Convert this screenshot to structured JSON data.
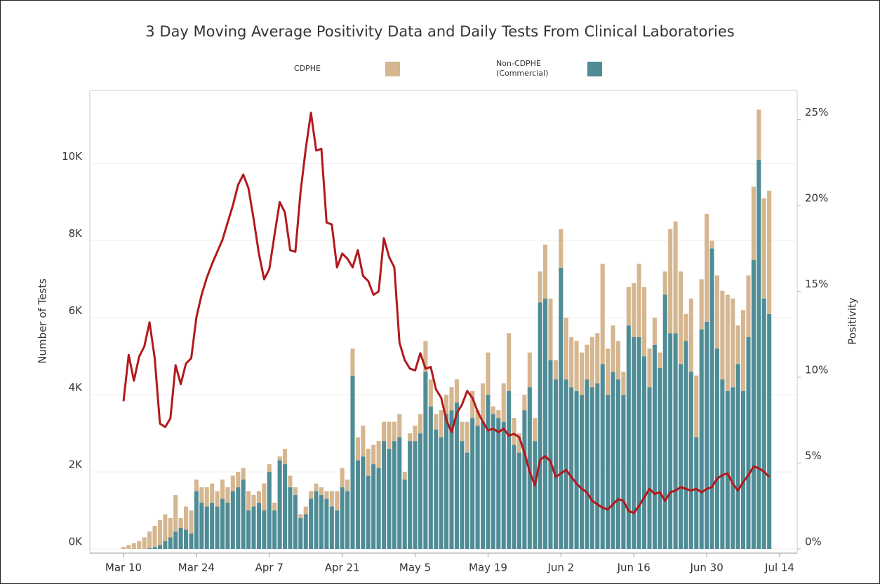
{
  "chart_data": {
    "type": "bar",
    "stacked": true,
    "title": "3 Day Moving Average Positivity Data and Daily Tests From Clinical Laboratories",
    "y_label": "Number of Tests",
    "y2_label": "Positivity",
    "categories": [
      "Mar 10",
      null,
      null,
      null,
      null,
      null,
      null,
      null,
      null,
      null,
      null,
      null,
      null,
      null,
      "Mar 24",
      null,
      null,
      null,
      null,
      null,
      null,
      null,
      null,
      null,
      null,
      null,
      null,
      null,
      "Apr 7",
      null,
      null,
      null,
      null,
      null,
      null,
      null,
      null,
      null,
      null,
      null,
      null,
      null,
      "Apr 21",
      null,
      null,
      null,
      null,
      null,
      null,
      null,
      null,
      null,
      null,
      null,
      null,
      null,
      "May 5",
      null,
      null,
      null,
      null,
      null,
      null,
      null,
      null,
      null,
      null,
      null,
      null,
      null,
      "May 19",
      null,
      null,
      null,
      null,
      null,
      null,
      null,
      null,
      null,
      null,
      null,
      null,
      null,
      "Jun 2",
      null,
      null,
      null,
      null,
      null,
      null,
      null,
      null,
      null,
      null,
      null,
      null,
      null,
      "Jun 16",
      null,
      null,
      null,
      null,
      null,
      null,
      null,
      null,
      null,
      null,
      null,
      null,
      null,
      "Jun 30",
      null,
      null,
      null,
      null,
      null,
      null,
      null,
      null,
      null,
      null,
      null,
      null,
      null,
      "Jul 14"
    ],
    "series": [
      {
        "name": "CDPHE",
        "color": "#d5b68f",
        "values": [
          50,
          100,
          150,
          200,
          300,
          430,
          550,
          650,
          700,
          500,
          950,
          250,
          600,
          600,
          300,
          400,
          500,
          500,
          400,
          500,
          400,
          400,
          400,
          300,
          500,
          300,
          300,
          700,
          200,
          200,
          100,
          400,
          300,
          200,
          100,
          200,
          200,
          200,
          200,
          200,
          400,
          500,
          500,
          300,
          700,
          600,
          800,
          700,
          500,
          700,
          500,
          700,
          500,
          600,
          200,
          200,
          400,
          500,
          800,
          700,
          400,
          700,
          500,
          600,
          600,
          500,
          800,
          700,
          400,
          1000,
          1100,
          200,
          200,
          1000,
          1500,
          700,
          500,
          400,
          900,
          600,
          800,
          1400,
          1600,
          500,
          1000,
          1600,
          1300,
          1300,
          1100,
          900,
          1300,
          1300,
          2600,
          1200,
          1200,
          1000,
          600,
          1000,
          1400,
          1900,
          1800,
          1000,
          700,
          400,
          600,
          2700,
          2900,
          2400,
          700,
          1900,
          1600,
          1300,
          2800,
          200,
          1900,
          2300,
          2500,
          2300,
          1000,
          2100,
          1600,
          1900,
          1300,
          2600,
          3200,
          null,
          null
        ]
      },
      {
        "name": "Non-CDPHE (Commercial)",
        "color": "#4f8c95",
        "values": [
          0,
          0,
          0,
          0,
          0,
          20,
          50,
          100,
          200,
          300,
          450,
          550,
          500,
          400,
          1500,
          1200,
          1100,
          1200,
          1100,
          1300,
          1200,
          1500,
          1600,
          1800,
          1000,
          1100,
          1200,
          1000,
          2000,
          1000,
          2300,
          2200,
          1600,
          1400,
          800,
          900,
          1300,
          1500,
          1400,
          1300,
          1100,
          1000,
          1600,
          1500,
          4500,
          2300,
          2400,
          1900,
          2200,
          2100,
          2800,
          2600,
          2800,
          2900,
          1800,
          2800,
          2800,
          3000,
          4600,
          3700,
          3100,
          2900,
          3500,
          3600,
          3800,
          2800,
          2500,
          3400,
          3200,
          3300,
          4000,
          3500,
          3400,
          3300,
          4100,
          2700,
          2500,
          3600,
          4200,
          2800,
          6400,
          6500,
          4900,
          4400,
          7300,
          4400,
          4200,
          4100,
          4000,
          4400,
          4200,
          4300,
          4800,
          4000,
          4600,
          4400,
          4000,
          5800,
          5500,
          5500,
          5000,
          4200,
          5300,
          4700,
          6600,
          5600,
          5600,
          4800,
          5400,
          4600,
          2900,
          5700,
          5900,
          7800,
          5200,
          4400,
          4100,
          4200,
          4800,
          4100,
          5500,
          7500,
          10100,
          6500,
          6100,
          null,
          null
        ]
      },
      {
        "type": "line",
        "axis": "y2",
        "color": "#b2191c",
        "values": [
          8.6,
          11.3,
          9.8,
          11.2,
          11.8,
          13.2,
          11.1,
          7.3,
          7.1,
          7.6,
          10.7,
          9.6,
          10.8,
          11.1,
          13.5,
          14.8,
          15.8,
          16.6,
          17.3,
          18.0,
          19.0,
          20.0,
          21.2,
          21.8,
          21.0,
          19.2,
          17.2,
          15.7,
          16.3,
          18.3,
          20.2,
          19.6,
          17.4,
          17.3,
          20.8,
          23.3,
          25.4,
          23.2,
          23.3,
          19.0,
          18.9,
          16.4,
          17.2,
          16.9,
          16.4,
          17.4,
          15.9,
          15.6,
          14.8,
          15.0,
          18.1,
          17.0,
          16.4,
          12.0,
          11.0,
          10.5,
          10.4,
          11.4,
          10.5,
          10.6,
          9.3,
          8.8,
          7.5,
          6.8,
          7.9,
          8.4,
          9.2,
          8.8,
          8.0,
          7.4,
          6.9,
          7.0,
          6.8,
          7.0,
          6.6,
          6.7,
          6.5,
          5.6,
          4.5,
          3.7,
          5.2,
          5.4,
          5.1,
          4.2,
          4.4,
          4.6,
          4.2,
          3.8,
          3.5,
          3.3,
          2.8,
          2.6,
          2.4,
          2.3,
          2.6,
          2.9,
          2.8,
          2.2,
          2.1,
          2.5,
          3.0,
          3.5,
          3.2,
          3.3,
          2.8,
          3.3,
          3.4,
          3.6,
          3.5,
          3.4,
          3.5,
          3.3,
          3.5,
          3.6,
          4.1,
          4.3,
          4.4,
          3.8,
          3.4,
          3.9,
          4.3,
          4.8,
          4.7,
          4.5,
          4.2,
          null,
          null
        ]
      }
    ],
    "ylim": [
      0,
      11900
    ],
    "yticks": [
      {
        "value": 0,
        "label": "0K"
      },
      {
        "value": 2000,
        "label": "2K"
      },
      {
        "value": 4000,
        "label": "4K"
      },
      {
        "value": 6000,
        "label": "6K"
      },
      {
        "value": 8000,
        "label": "8K"
      },
      {
        "value": 10000,
        "label": "10K"
      }
    ],
    "y2lim": [
      0,
      26.7
    ],
    "y2ticks": [
      {
        "value": 0,
        "label": "0%"
      },
      {
        "value": 5,
        "label": "5%"
      },
      {
        "value": 10,
        "label": "10%"
      },
      {
        "value": 15,
        "label": "15%"
      },
      {
        "value": 20,
        "label": "20%"
      },
      {
        "value": 25,
        "label": "25%"
      }
    ],
    "grid": true
  }
}
